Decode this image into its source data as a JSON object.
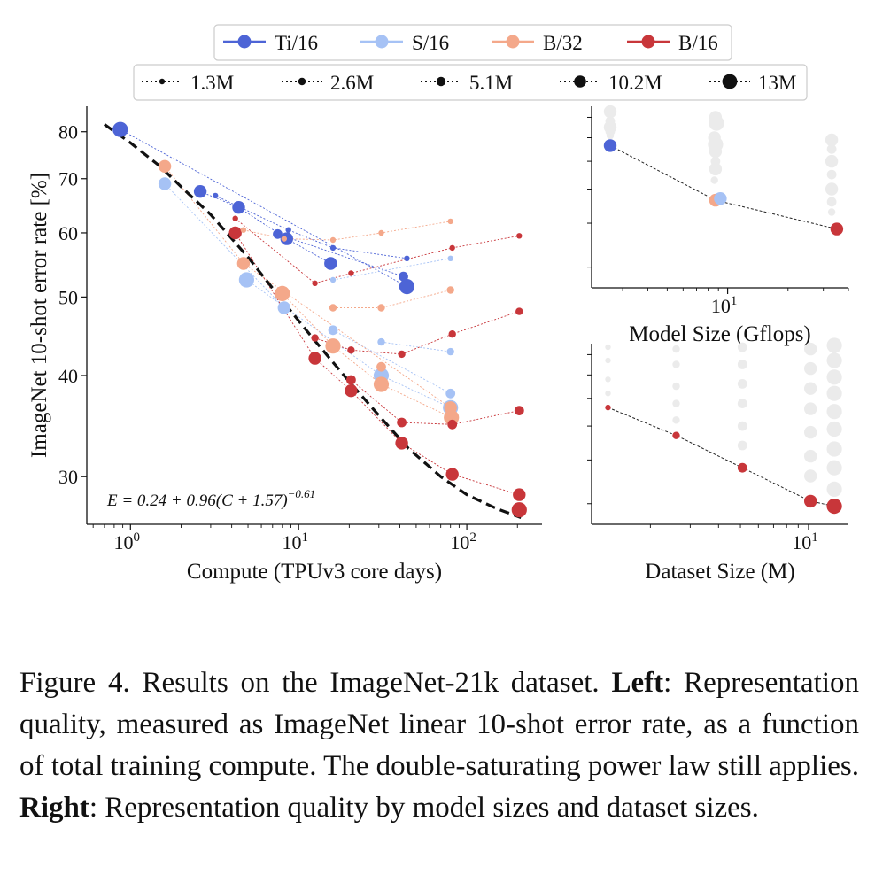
{
  "chart_data": [
    {
      "type": "scatter",
      "panel": "left",
      "xlabel": "Compute (TPUv3 core days)",
      "ylabel": "ImageNet 10-shot error rate [%]",
      "xscale": "log",
      "yscale": "log",
      "xlim": [
        0.55,
        280
      ],
      "ylim": [
        26.2,
        86
      ],
      "yticks": [
        30,
        40,
        50,
        60,
        70,
        80
      ],
      "ytick_labels": [
        "30",
        "40",
        "50",
        "60",
        "70",
        "80"
      ],
      "xticks": [
        1,
        10,
        100
      ],
      "xtick_base": "10",
      "xtick_exponents": [
        "0",
        "1",
        "2"
      ],
      "fit_formula": {
        "lhs": "E = 0.24 + 0.96(C + 1.57)",
        "exponent": "−0.61"
      },
      "fit_curve": [
        [
          0.7,
          81.7
        ],
        [
          1.0,
          77.5
        ],
        [
          1.5,
          72.5
        ],
        [
          2.0,
          68.4
        ],
        [
          3.0,
          63.2
        ],
        [
          5.0,
          56.0
        ],
        [
          8.0,
          49.5
        ],
        [
          12.0,
          44.6
        ],
        [
          20.0,
          39.3
        ],
        [
          30.0,
          35.7
        ],
        [
          45.0,
          32.5
        ],
        [
          70.0,
          30.0
        ],
        [
          100.0,
          28.5
        ],
        [
          150.0,
          27.4
        ],
        [
          210.0,
          26.7
        ]
      ],
      "series": [
        {
          "name": "Ti/16",
          "color": "#4d64d6",
          "points": [
            {
              "x": 0.87,
              "y": 80.5,
              "dataset": "13M"
            },
            {
              "x": 2.6,
              "y": 67.5,
              "dataset": "10.2M"
            },
            {
              "x": 4.4,
              "y": 64.5,
              "dataset": "10.2M"
            },
            {
              "x": 8.5,
              "y": 59.0,
              "dataset": "10.2M"
            },
            {
              "x": 15.5,
              "y": 55.0,
              "dataset": "10.2M"
            },
            {
              "x": 44.0,
              "y": 51.5,
              "dataset": "13M"
            },
            {
              "x": 3.2,
              "y": 66.7,
              "dataset": "1.3M"
            },
            {
              "x": 8.7,
              "y": 60.5,
              "dataset": "1.3M"
            },
            {
              "x": 16.0,
              "y": 57.5,
              "dataset": "1.3M"
            },
            {
              "x": 44.0,
              "y": 55.8,
              "dataset": "1.3M"
            },
            {
              "x": 7.5,
              "y": 59.8,
              "dataset": "5.1M"
            },
            {
              "x": 42.0,
              "y": 53.0,
              "dataset": "5.1M"
            }
          ]
        },
        {
          "name": "S/16",
          "color": "#a6c2f5",
          "points": [
            {
              "x": 1.6,
              "y": 69.0,
              "dataset": "10.2M"
            },
            {
              "x": 4.9,
              "y": 52.5,
              "dataset": "13M"
            },
            {
              "x": 8.2,
              "y": 48.5,
              "dataset": "10.2M"
            },
            {
              "x": 16.0,
              "y": 45.5,
              "dataset": "5.1M"
            },
            {
              "x": 31.0,
              "y": 40.0,
              "dataset": "13M"
            },
            {
              "x": 80.0,
              "y": 36.5,
              "dataset": "13M"
            },
            {
              "x": 80.0,
              "y": 55.8,
              "dataset": "1.3M"
            },
            {
              "x": 80.0,
              "y": 42.8,
              "dataset": "2.6M"
            },
            {
              "x": 80.0,
              "y": 38.0,
              "dataset": "5.1M"
            },
            {
              "x": 31.0,
              "y": 44.0,
              "dataset": "2.6M"
            },
            {
              "x": 16.0,
              "y": 52.5,
              "dataset": "1.3M"
            }
          ]
        },
        {
          "name": "B/32",
          "color": "#f4a88a",
          "points": [
            {
              "x": 1.6,
              "y": 72.5,
              "dataset": "10.2M"
            },
            {
              "x": 4.7,
              "y": 55.0,
              "dataset": "10.2M"
            },
            {
              "x": 8.0,
              "y": 50.5,
              "dataset": "13M"
            },
            {
              "x": 16.0,
              "y": 43.5,
              "dataset": "13M"
            },
            {
              "x": 31.0,
              "y": 39.0,
              "dataset": "13M"
            },
            {
              "x": 81.0,
              "y": 35.5,
              "dataset": "13M"
            },
            {
              "x": 8.2,
              "y": 59.0,
              "dataset": "1.3M"
            },
            {
              "x": 16.0,
              "y": 58.8,
              "dataset": "1.3M"
            },
            {
              "x": 31.0,
              "y": 60.0,
              "dataset": "1.3M"
            },
            {
              "x": 80.0,
              "y": 62.0,
              "dataset": "1.3M"
            },
            {
              "x": 16.0,
              "y": 48.5,
              "dataset": "2.6M"
            },
            {
              "x": 31.0,
              "y": 48.5,
              "dataset": "2.6M"
            },
            {
              "x": 80.0,
              "y": 51.0,
              "dataset": "2.6M"
            },
            {
              "x": 4.7,
              "y": 60.5,
              "dataset": "1.3M"
            },
            {
              "x": 31.0,
              "y": 41.0,
              "dataset": "5.1M"
            },
            {
              "x": 80.0,
              "y": 36.5,
              "dataset": "10.2M"
            }
          ]
        },
        {
          "name": "B/16",
          "color": "#c8363a",
          "points": [
            {
              "x": 4.2,
              "y": 60.0,
              "dataset": "10.2M"
            },
            {
              "x": 12.5,
              "y": 42.0,
              "dataset": "10.2M"
            },
            {
              "x": 20.5,
              "y": 38.3,
              "dataset": "10.2M"
            },
            {
              "x": 41.0,
              "y": 33.0,
              "dataset": "10.2M"
            },
            {
              "x": 82.0,
              "y": 30.2,
              "dataset": "10.2M"
            },
            {
              "x": 205.0,
              "y": 28.5,
              "dataset": "10.2M"
            },
            {
              "x": 205.0,
              "y": 27.3,
              "dataset": "13M"
            },
            {
              "x": 12.5,
              "y": 52.0,
              "dataset": "1.3M"
            },
            {
              "x": 20.5,
              "y": 53.5,
              "dataset": "1.3M"
            },
            {
              "x": 82.0,
              "y": 57.5,
              "dataset": "1.3M"
            },
            {
              "x": 205.0,
              "y": 59.5,
              "dataset": "1.3M"
            },
            {
              "x": 12.5,
              "y": 44.5,
              "dataset": "2.6M"
            },
            {
              "x": 20.5,
              "y": 43.0,
              "dataset": "2.6M"
            },
            {
              "x": 41.0,
              "y": 42.5,
              "dataset": "2.6M"
            },
            {
              "x": 82.0,
              "y": 45.0,
              "dataset": "2.6M"
            },
            {
              "x": 205.0,
              "y": 48.0,
              "dataset": "2.6M"
            },
            {
              "x": 20.5,
              "y": 39.5,
              "dataset": "5.1M"
            },
            {
              "x": 41.0,
              "y": 35.0,
              "dataset": "5.1M"
            },
            {
              "x": 82.0,
              "y": 34.8,
              "dataset": "5.1M"
            },
            {
              "x": 205.0,
              "y": 36.2,
              "dataset": "5.1M"
            },
            {
              "x": 4.2,
              "y": 62.5,
              "dataset": "1.3M"
            }
          ]
        }
      ]
    },
    {
      "type": "scatter",
      "panel": "top-right",
      "xlabel": "Model Size (Gflops)",
      "xscale": "log",
      "yscale": "log",
      "xlim": [
        2.1,
        40
      ],
      "ylim": [
        26.2,
        86
      ],
      "xticks": [
        10
      ],
      "xtick_base": "10",
      "xtick_exponents": [
        "1"
      ],
      "background_color": "#ebebeb",
      "background_points": [
        {
          "x": 2.6,
          "y": 83,
          "dataset": "10.2M"
        },
        {
          "x": 2.6,
          "y": 78,
          "dataset": "5.1M"
        },
        {
          "x": 2.6,
          "y": 75,
          "dataset": "10.2M"
        },
        {
          "x": 2.6,
          "y": 73,
          "dataset": "5.1M"
        },
        {
          "x": 2.6,
          "y": 71,
          "dataset": "2.6M"
        },
        {
          "x": 2.6,
          "y": 66,
          "dataset": "1.3M"
        },
        {
          "x": 8.7,
          "y": 80,
          "dataset": "10.2M"
        },
        {
          "x": 8.8,
          "y": 77,
          "dataset": "13M"
        },
        {
          "x": 8.6,
          "y": 70,
          "dataset": "10.2M"
        },
        {
          "x": 8.7,
          "y": 67,
          "dataset": "13M"
        },
        {
          "x": 8.7,
          "y": 64,
          "dataset": "10.2M"
        },
        {
          "x": 8.7,
          "y": 60,
          "dataset": "5.1M"
        },
        {
          "x": 8.7,
          "y": 57,
          "dataset": "10.2M"
        },
        {
          "x": 8.6,
          "y": 53,
          "dataset": "2.6M"
        },
        {
          "x": 33,
          "y": 69,
          "dataset": "10.2M"
        },
        {
          "x": 33,
          "y": 65,
          "dataset": "5.1M"
        },
        {
          "x": 33,
          "y": 60,
          "dataset": "10.2M"
        },
        {
          "x": 33,
          "y": 55,
          "dataset": "5.1M"
        },
        {
          "x": 33,
          "y": 50,
          "dataset": "10.2M"
        },
        {
          "x": 33,
          "y": 46,
          "dataset": "5.1M"
        },
        {
          "x": 33,
          "y": 43,
          "dataset": "2.6M"
        }
      ],
      "points": [
        {
          "x": 2.6,
          "y": 66.5,
          "series": "Ti/16",
          "dataset": "10.2M"
        },
        {
          "x": 8.7,
          "y": 46.5,
          "series": "B/32",
          "dataset": "10.2M"
        },
        {
          "x": 9.2,
          "y": 47.0,
          "series": "S/16",
          "dataset": "10.2M"
        },
        {
          "x": 35.0,
          "y": 38.5,
          "series": "B/16",
          "dataset": "10.2M"
        }
      ]
    },
    {
      "type": "scatter",
      "panel": "bottom-right",
      "xlabel": "Dataset Size (M)",
      "xscale": "log",
      "yscale": "log",
      "xlim": [
        1.1,
        15
      ],
      "ylim": [
        26.2,
        86
      ],
      "xticks": [
        10
      ],
      "xtick_base": "10",
      "xtick_exponents": [
        "1"
      ],
      "background_color": "#ebebeb",
      "background_points": [
        {
          "x": 1.3,
          "y": 84,
          "dataset": "1.3M"
        },
        {
          "x": 1.3,
          "y": 77,
          "dataset": "1.3M"
        },
        {
          "x": 1.3,
          "y": 68,
          "dataset": "1.3M"
        },
        {
          "x": 1.3,
          "y": 62,
          "dataset": "1.3M"
        },
        {
          "x": 2.6,
          "y": 83,
          "dataset": "2.6M"
        },
        {
          "x": 2.6,
          "y": 75,
          "dataset": "2.6M"
        },
        {
          "x": 2.6,
          "y": 65,
          "dataset": "2.6M"
        },
        {
          "x": 2.6,
          "y": 58,
          "dataset": "2.6M"
        },
        {
          "x": 2.6,
          "y": 52,
          "dataset": "2.6M"
        },
        {
          "x": 5.1,
          "y": 84,
          "dataset": "5.1M"
        },
        {
          "x": 5.1,
          "y": 75,
          "dataset": "5.1M"
        },
        {
          "x": 5.1,
          "y": 66,
          "dataset": "5.1M"
        },
        {
          "x": 5.1,
          "y": 58,
          "dataset": "5.1M"
        },
        {
          "x": 5.1,
          "y": 50,
          "dataset": "5.1M"
        },
        {
          "x": 5.1,
          "y": 44,
          "dataset": "5.1M"
        },
        {
          "x": 10.2,
          "y": 83,
          "dataset": "10.2M"
        },
        {
          "x": 10.2,
          "y": 73,
          "dataset": "10.2M"
        },
        {
          "x": 10.2,
          "y": 64,
          "dataset": "10.2M"
        },
        {
          "x": 10.2,
          "y": 56,
          "dataset": "10.2M"
        },
        {
          "x": 10.2,
          "y": 48,
          "dataset": "10.2M"
        },
        {
          "x": 10.2,
          "y": 41,
          "dataset": "10.2M"
        },
        {
          "x": 10.2,
          "y": 36,
          "dataset": "10.2M"
        },
        {
          "x": 13,
          "y": 85,
          "dataset": "13M"
        },
        {
          "x": 13,
          "y": 77,
          "dataset": "13M"
        },
        {
          "x": 13,
          "y": 69,
          "dataset": "13M"
        },
        {
          "x": 13,
          "y": 62,
          "dataset": "13M"
        },
        {
          "x": 13,
          "y": 55,
          "dataset": "13M"
        },
        {
          "x": 13,
          "y": 49,
          "dataset": "13M"
        },
        {
          "x": 13,
          "y": 43,
          "dataset": "13M"
        },
        {
          "x": 13,
          "y": 38,
          "dataset": "13M"
        },
        {
          "x": 13,
          "y": 33,
          "dataset": "13M"
        }
      ],
      "points": [
        {
          "x": 1.3,
          "y": 56.5,
          "series": "B/16",
          "dataset": "1.3M"
        },
        {
          "x": 2.6,
          "y": 47.0,
          "series": "B/16",
          "dataset": "2.6M"
        },
        {
          "x": 5.1,
          "y": 38.0,
          "series": "B/16",
          "dataset": "5.1M"
        },
        {
          "x": 10.2,
          "y": 30.5,
          "series": "B/16",
          "dataset": "10.2M"
        },
        {
          "x": 13.0,
          "y": 29.5,
          "series": "B/16",
          "dataset": "13M"
        }
      ]
    }
  ],
  "legend": {
    "models": [
      {
        "label": "Ti/16",
        "color": "#4d64d6"
      },
      {
        "label": "S/16",
        "color": "#a6c2f5"
      },
      {
        "label": "B/32",
        "color": "#f4a88a"
      },
      {
        "label": "B/16",
        "color": "#c8363a"
      }
    ],
    "datasets": [
      {
        "label": "1.3M",
        "size": 1
      },
      {
        "label": "2.6M",
        "size": 2
      },
      {
        "label": "5.1M",
        "size": 3
      },
      {
        "label": "10.2M",
        "size": 4
      },
      {
        "label": "13M",
        "size": 5
      }
    ]
  },
  "caption": {
    "prefix": "Figure 4. Results on the ImageNet-21k dataset. ",
    "left_bold": "Left",
    "left_text": ": Representation quality, measured as ImageNet linear 10-shot error rate, as a function of total training compute. The double-saturating power law still applies. ",
    "right_bold": "Right",
    "right_text": ": Representation quality by model sizes and dataset sizes."
  }
}
